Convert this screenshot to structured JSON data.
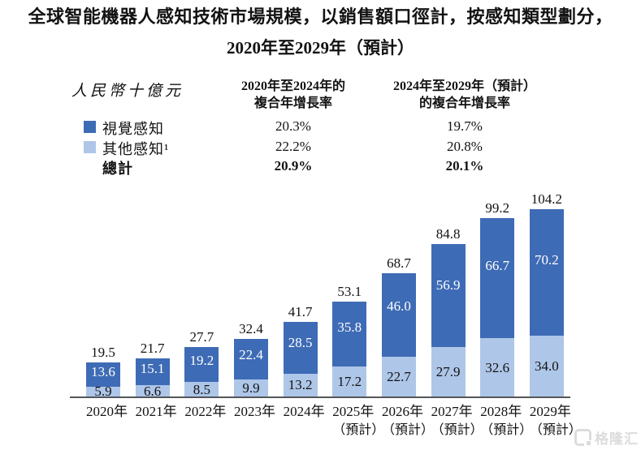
{
  "title": {
    "line1": "全球智能機器人感知技術市場規模，以銷售額口徑計，按感知類型劃分，",
    "line2": "2020年至2029年（預計）"
  },
  "unit_label": "人民幣十億元",
  "cagr_table": {
    "col1_header": {
      "line1": "2020年至2024年的",
      "line2": "複合年增長率"
    },
    "col2_header": {
      "line1": "2024年至2029年（預計）",
      "line2": "的複合年增長率"
    },
    "rows": [
      {
        "label": "視覺感知",
        "col1": "20.3%",
        "col2": "19.7%"
      },
      {
        "label": "其他感知¹",
        "col1": "22.2%",
        "col2": "20.8%"
      },
      {
        "label": "總計",
        "col1": "20.9%",
        "col2": "20.1%"
      }
    ]
  },
  "chart_data": {
    "type": "bar",
    "stacked": true,
    "title": "全球智能機器人感知技術市場規模，以銷售額口徑計，按感知類型劃分，2020年至2029年（預計）",
    "unit": "人民幣十億元",
    "categories": [
      "2020年",
      "2021年",
      "2022年",
      "2023年",
      "2024年",
      "2025年",
      "2026年",
      "2027年",
      "2028年",
      "2029年"
    ],
    "category_suffixes": [
      "",
      "",
      "",
      "",
      "",
      "（預計）",
      "（預計）",
      "（預計）",
      "（預計）",
      "（預計）"
    ],
    "series": [
      {
        "name": "視覺感知",
        "color": "#3E6BB5",
        "values": [
          13.6,
          15.1,
          19.2,
          22.4,
          28.5,
          35.8,
          46.0,
          56.9,
          66.7,
          70.2
        ]
      },
      {
        "name": "其他感知¹",
        "color": "#AEC6E8",
        "values": [
          5.9,
          6.6,
          8.5,
          9.9,
          13.2,
          17.2,
          22.7,
          27.9,
          32.6,
          34.0
        ]
      }
    ],
    "totals": [
      19.5,
      21.7,
      27.7,
      32.4,
      41.7,
      53.1,
      68.7,
      84.8,
      99.2,
      104.2
    ],
    "ylim": [
      0,
      104.2
    ],
    "value_label_format": "one-decimal",
    "legend_position": "top-left",
    "grid": false
  },
  "watermark": {
    "text": "格隆汇"
  }
}
